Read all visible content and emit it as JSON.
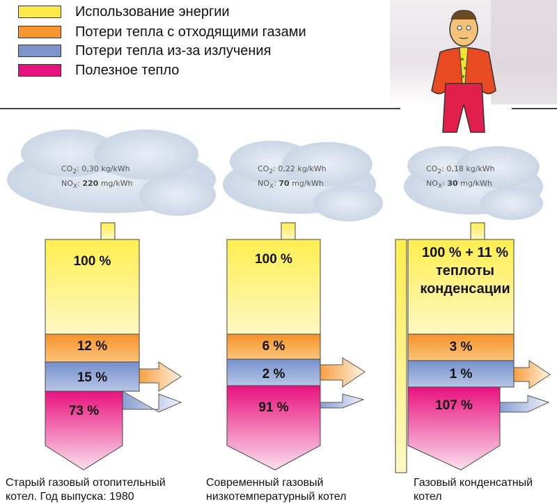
{
  "legend": [
    {
      "label": "Использование энергии",
      "color": "#ffe94a"
    },
    {
      "label": "Потери тепла с отходящими газами",
      "color": "#f7962e"
    },
    {
      "label": "Потери тепла из-за излучения",
      "color": "#7b94cc"
    },
    {
      "label": "Полезное тепло",
      "color": "#e8127e"
    }
  ],
  "boilers": [
    {
      "co2_label": "CO",
      "co2_sub": "2",
      "co2_value": ": 0,30 kg/kWh",
      "nox_label": "NO",
      "nox_sub": "X",
      "nox_prefix": ": ",
      "nox_value": "220",
      "nox_unit": " mg/kWh",
      "energy": "100 %",
      "flue_loss": "12 %",
      "radiation_loss": "15 %",
      "useful": "73 %",
      "caption_line1": "Старый газовый отопительный",
      "caption_line2": "котел. Год выпуска: 1980"
    },
    {
      "co2_label": "CO",
      "co2_sub": "2",
      "co2_value": ": 0,22 kg/kWh",
      "nox_label": "NO",
      "nox_sub": "X",
      "nox_prefix": ": ",
      "nox_value": "70",
      "nox_unit": " mg/kWh",
      "energy": "100 %",
      "flue_loss": "6 %",
      "radiation_loss": "2 %",
      "useful": "91 %",
      "caption_line1": "Современный газовый",
      "caption_line2": "низкотемпературный котел"
    },
    {
      "co2_label": "CO",
      "co2_sub": "2",
      "co2_value": ": 0,18 kg/kWh",
      "nox_label": "NO",
      "nox_sub": "X",
      "nox_prefix": ": ",
      "nox_value": "30",
      "nox_unit": " mg/kWh",
      "energy_line1": "100 % + 11 %",
      "energy_line2": "теплоты",
      "energy_line3": "конденсации",
      "flue_loss": "3 %",
      "radiation_loss": "1 %",
      "useful": "107 %",
      "caption_line1": "Газовый конденсатный",
      "caption_line2": "котел"
    }
  ]
}
